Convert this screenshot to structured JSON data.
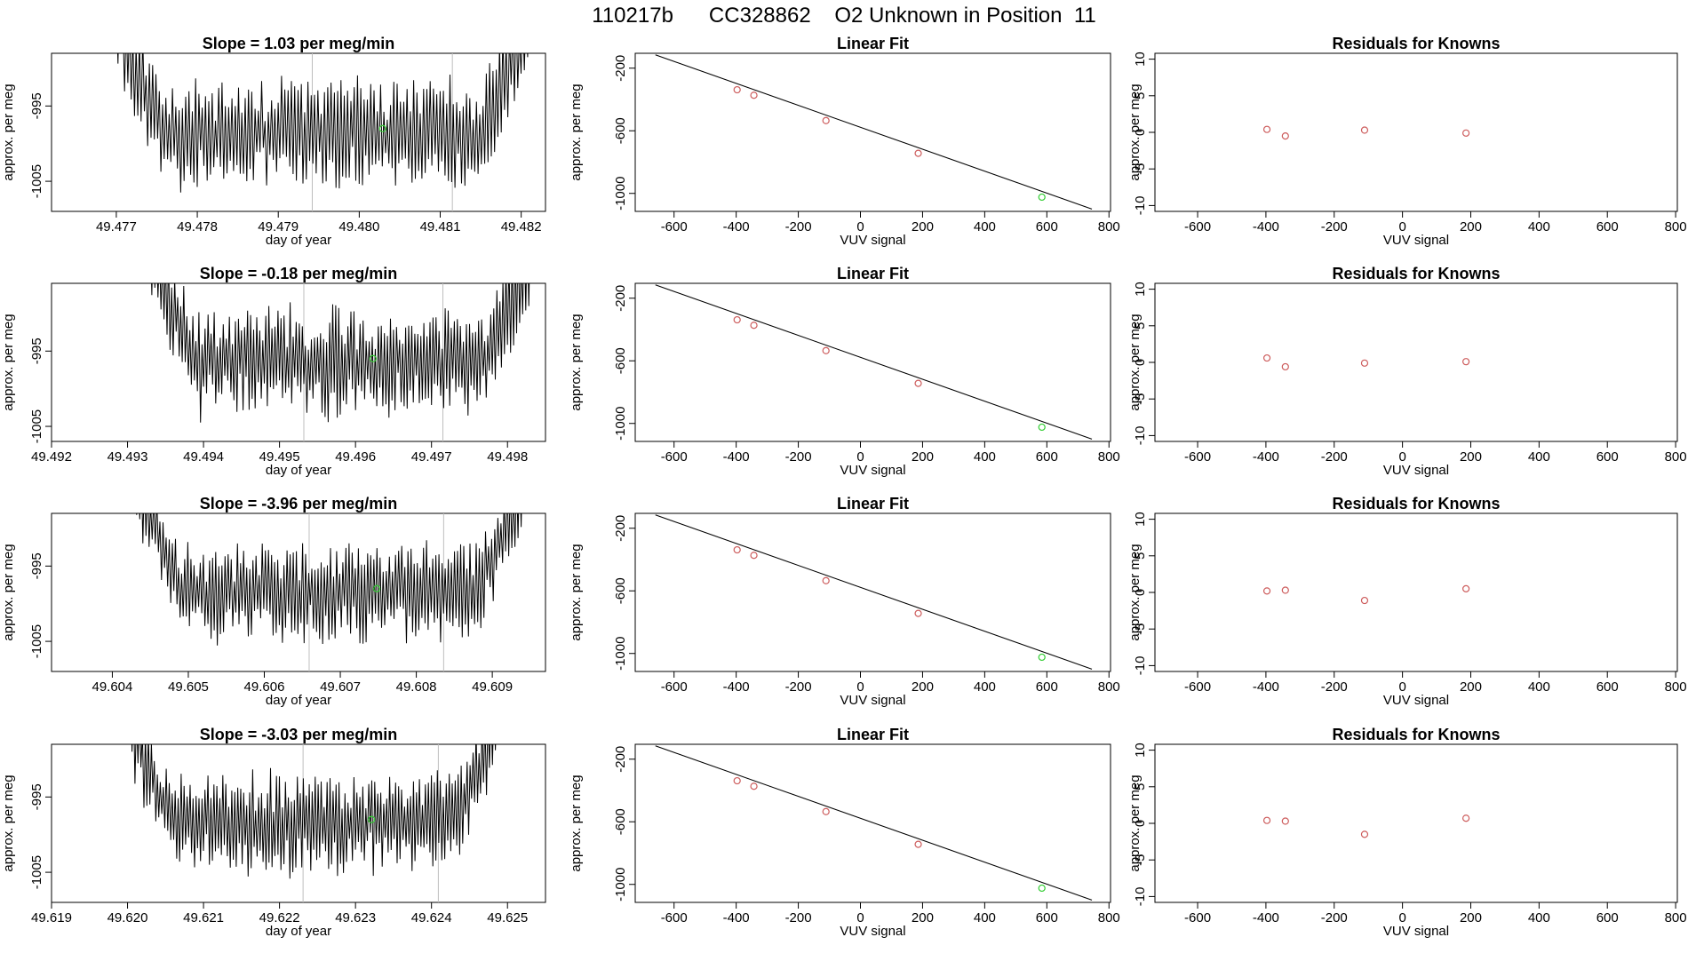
{
  "title": "110217b      CC328862    O2 Unknown in Position  11",
  "colors": {
    "known": "#cd5c5c",
    "unknown": "#32cd32",
    "line": "#000000",
    "guide": "#bebebe"
  },
  "chart_data": [
    {
      "row": 1,
      "timeseries": {
        "type": "line",
        "title": "Slope =  1.03  per meg/min",
        "xlabel": "day of year",
        "ylabel": "approx. per meg",
        "xlim": [
          49.4762,
          49.4823
        ],
        "ylim": [
          -1009,
          -988
        ],
        "xticks": [
          49.477,
          49.478,
          49.479,
          49.48,
          49.481,
          49.482
        ],
        "xtick_labels": [
          "49.477",
          "49.478",
          "49.479",
          "49.480",
          "49.481",
          "49.482"
        ],
        "yticks": [
          -995,
          -1005
        ],
        "ytick_labels": [
          "-995",
          "-1005"
        ],
        "x_start": 49.477,
        "x_end": 49.4821,
        "vlines": [
          49.47942,
          49.48115
        ],
        "unknown_point": {
          "x": 49.48029,
          "y": -998
        },
        "amplitude": 5.5,
        "seed": 11
      },
      "linear_fit": {
        "type": "scatter",
        "title": "Linear Fit",
        "xlabel": "VUV signal",
        "ylabel": "approx. per meg",
        "xlim": [
          -725,
          805
        ],
        "ylim": [
          -1115,
          -105
        ],
        "xticks": [
          -600,
          -400,
          -200,
          0,
          200,
          400,
          600,
          800
        ],
        "xtick_labels": [
          "-600",
          "-400",
          "-200",
          "0",
          "200",
          "400",
          "600",
          "800"
        ],
        "yticks": [
          -200,
          -600,
          -1000
        ],
        "ytick_labels": [
          "-200",
          "-600",
          "-1000"
        ],
        "line": {
          "x": [
            -660,
            745
          ],
          "y": [
            -115,
            -1100
          ]
        },
        "knowns": {
          "x": [
            -397,
            -343,
            -111,
            186
          ],
          "y": [
            -338,
            -373,
            -535,
            -744
          ]
        },
        "unknown": {
          "x": 584,
          "y": -1024
        }
      },
      "residuals": {
        "type": "scatter",
        "title": "Residuals for Knowns",
        "xlabel": "VUV signal",
        "ylabel": "approx. per meg",
        "xlim": [
          -725,
          805
        ],
        "ylim": [
          -10.8,
          10.8
        ],
        "xticks": [
          -600,
          -400,
          -200,
          0,
          200,
          400,
          600,
          800
        ],
        "xtick_labels": [
          "-600",
          "-400",
          "-200",
          "0",
          "200",
          "400",
          "600",
          "800"
        ],
        "yticks": [
          10,
          5,
          0,
          -5,
          -10
        ],
        "ytick_labels": [
          "10",
          "5",
          "0",
          "-5",
          "-10"
        ],
        "x": [
          -397,
          -343,
          -111,
          186
        ],
        "y": [
          0.4,
          -0.5,
          0.3,
          -0.1
        ]
      }
    },
    {
      "row": 2,
      "timeseries": {
        "type": "line",
        "title": "Slope =  -0.18  per meg/min",
        "xlabel": "day of year",
        "ylabel": "approx. per meg",
        "xlim": [
          49.492,
          49.4985
        ],
        "ylim": [
          -1007,
          -986
        ],
        "xticks": [
          49.492,
          49.493,
          49.494,
          49.495,
          49.496,
          49.497,
          49.498
        ],
        "xtick_labels": [
          "49.492",
          "49.493",
          "49.494",
          "49.495",
          "49.496",
          "49.497",
          "49.498"
        ],
        "yticks": [
          -995,
          -1005
        ],
        "ytick_labels": [
          "-995",
          "-1005"
        ],
        "x_start": 49.4933,
        "x_end": 49.4983,
        "vlines": [
          49.49532,
          49.49715
        ],
        "unknown_point": {
          "x": 49.49623,
          "y": -996
        },
        "amplitude": 5.5,
        "seed": 23
      },
      "linear_fit": {
        "type": "scatter",
        "title": "Linear Fit",
        "xlabel": "VUV signal",
        "ylabel": "approx. per meg",
        "xlim": [
          -725,
          805
        ],
        "ylim": [
          -1115,
          -105
        ],
        "xticks": [
          -600,
          -400,
          -200,
          0,
          200,
          400,
          600,
          800
        ],
        "xtick_labels": [
          "-600",
          "-400",
          "-200",
          "0",
          "200",
          "400",
          "600",
          "800"
        ],
        "yticks": [
          -200,
          -600,
          -1000
        ],
        "ytick_labels": [
          "-200",
          "-600",
          "-1000"
        ],
        "line": {
          "x": [
            -660,
            745
          ],
          "y": [
            -115,
            -1100
          ]
        },
        "knowns": {
          "x": [
            -397,
            -343,
            -111,
            186
          ],
          "y": [
            -338,
            -373,
            -535,
            -744
          ]
        },
        "unknown": {
          "x": 584,
          "y": -1024
        }
      },
      "residuals": {
        "type": "scatter",
        "title": "Residuals for Knowns",
        "xlabel": "VUV signal",
        "ylabel": "approx. per meg",
        "xlim": [
          -725,
          805
        ],
        "ylim": [
          -10.8,
          10.8
        ],
        "xticks": [
          -600,
          -400,
          -200,
          0,
          200,
          400,
          600,
          800
        ],
        "xtick_labels": [
          "-600",
          "-400",
          "-200",
          "0",
          "200",
          "400",
          "600",
          "800"
        ],
        "yticks": [
          10,
          5,
          0,
          -5,
          -10
        ],
        "ytick_labels": [
          "10",
          "5",
          "0",
          "-5",
          "-10"
        ],
        "x": [
          -397,
          -343,
          -111,
          186
        ],
        "y": [
          0.6,
          -0.6,
          -0.1,
          0.1
        ]
      }
    },
    {
      "row": 3,
      "timeseries": {
        "type": "line",
        "title": "Slope =  -3.96  per meg/min",
        "xlabel": "day of year",
        "ylabel": "approx. per meg",
        "xlim": [
          49.6032,
          49.6097
        ],
        "ylim": [
          -1009,
          -988
        ],
        "xticks": [
          49.604,
          49.605,
          49.606,
          49.607,
          49.608,
          49.609
        ],
        "xtick_labels": [
          "49.604",
          "49.605",
          "49.606",
          "49.607",
          "49.608",
          "49.609"
        ],
        "yticks": [
          -995,
          -1005
        ],
        "ytick_labels": [
          "-995",
          "-1005"
        ],
        "x_start": 49.6043,
        "x_end": 49.6094,
        "vlines": [
          49.60659,
          49.60836
        ],
        "unknown_point": {
          "x": 49.60748,
          "y": -998
        },
        "amplitude": 5,
        "seed": 37
      },
      "linear_fit": {
        "type": "scatter",
        "title": "Linear Fit",
        "xlabel": "VUV signal",
        "ylabel": "approx. per meg",
        "xlim": [
          -725,
          805
        ],
        "ylim": [
          -1115,
          -105
        ],
        "xticks": [
          -600,
          -400,
          -200,
          0,
          200,
          400,
          600,
          800
        ],
        "xtick_labels": [
          "-600",
          "-400",
          "-200",
          "0",
          "200",
          "400",
          "600",
          "800"
        ],
        "yticks": [
          -200,
          -600,
          -1000
        ],
        "ytick_labels": [
          "-200",
          "-600",
          "-1000"
        ],
        "line": {
          "x": [
            -660,
            745
          ],
          "y": [
            -115,
            -1100
          ]
        },
        "knowns": {
          "x": [
            -397,
            -343,
            -111,
            186
          ],
          "y": [
            -338,
            -373,
            -535,
            -744
          ]
        },
        "unknown": {
          "x": 584,
          "y": -1024
        }
      },
      "residuals": {
        "type": "scatter",
        "title": "Residuals for Knowns",
        "xlabel": "VUV signal",
        "ylabel": "approx. per meg",
        "xlim": [
          -725,
          805
        ],
        "ylim": [
          -10.8,
          10.8
        ],
        "xticks": [
          -600,
          -400,
          -200,
          0,
          200,
          400,
          600,
          800
        ],
        "xtick_labels": [
          "-600",
          "-400",
          "-200",
          "0",
          "200",
          "400",
          "600",
          "800"
        ],
        "yticks": [
          10,
          5,
          0,
          -5,
          -10
        ],
        "ytick_labels": [
          "10",
          "5",
          "0",
          "-5",
          "-10"
        ],
        "x": [
          -397,
          -343,
          -111,
          186
        ],
        "y": [
          0.2,
          0.3,
          -1.1,
          0.5
        ]
      }
    },
    {
      "row": 4,
      "timeseries": {
        "type": "line",
        "title": "Slope =  -3.03  per meg/min",
        "xlabel": "day of year",
        "ylabel": "approx. per meg",
        "xlim": [
          49.619,
          49.6255
        ],
        "ylim": [
          -1009,
          -988
        ],
        "xticks": [
          49.619,
          49.62,
          49.621,
          49.622,
          49.623,
          49.624,
          49.625
        ],
        "xtick_labels": [
          "49.619",
          "49.620",
          "49.621",
          "49.622",
          "49.623",
          "49.624",
          "49.625"
        ],
        "yticks": [
          -995,
          -1005
        ],
        "ytick_labels": [
          "-995",
          "-1005"
        ],
        "x_start": 49.62,
        "x_end": 49.6249,
        "vlines": [
          49.62231,
          49.62409
        ],
        "unknown_point": {
          "x": 49.62321,
          "y": -998
        },
        "amplitude": 5,
        "seed": 53
      },
      "linear_fit": {
        "type": "scatter",
        "title": "Linear Fit",
        "xlabel": "VUV signal",
        "ylabel": "approx. per meg",
        "xlim": [
          -725,
          805
        ],
        "ylim": [
          -1115,
          -105
        ],
        "xticks": [
          -600,
          -400,
          -200,
          0,
          200,
          400,
          600,
          800
        ],
        "xtick_labels": [
          "-600",
          "-400",
          "-200",
          "0",
          "200",
          "400",
          "600",
          "800"
        ],
        "yticks": [
          -200,
          -600,
          -1000
        ],
        "ytick_labels": [
          "-200",
          "-600",
          "-1000"
        ],
        "line": {
          "x": [
            -660,
            745
          ],
          "y": [
            -115,
            -1100
          ]
        },
        "knowns": {
          "x": [
            -397,
            -343,
            -111,
            186
          ],
          "y": [
            -338,
            -373,
            -535,
            -744
          ]
        },
        "unknown": {
          "x": 584,
          "y": -1024
        }
      },
      "residuals": {
        "type": "scatter",
        "title": "Residuals for Knowns",
        "xlabel": "VUV signal",
        "ylabel": "approx. per meg",
        "xlim": [
          -725,
          805
        ],
        "ylim": [
          -10.8,
          10.8
        ],
        "xticks": [
          -600,
          -400,
          -200,
          0,
          200,
          400,
          600,
          800
        ],
        "xtick_labels": [
          "-600",
          "-400",
          "-200",
          "0",
          "200",
          "400",
          "600",
          "800"
        ],
        "yticks": [
          10,
          5,
          0,
          -5,
          -10
        ],
        "ytick_labels": [
          "10",
          "5",
          "0",
          "-5",
          "-10"
        ],
        "x": [
          -397,
          -343,
          -111,
          186
        ],
        "y": [
          0.4,
          0.3,
          -1.5,
          0.7
        ]
      }
    }
  ]
}
